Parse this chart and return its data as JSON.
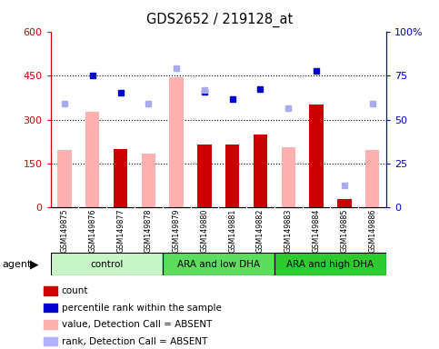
{
  "title": "GDS2652 / 219128_at",
  "samples": [
    "GSM149875",
    "GSM149876",
    "GSM149877",
    "GSM149878",
    "GSM149879",
    "GSM149880",
    "GSM149881",
    "GSM149882",
    "GSM149883",
    "GSM149884",
    "GSM149885",
    "GSM149886"
  ],
  "group_colors": [
    "#c8f5c8",
    "#5ddd5d",
    "#2ecb2e"
  ],
  "group_labels": [
    "control",
    "ARA and low DHA",
    "ARA and high DHA"
  ],
  "group_ranges": [
    [
      0,
      3
    ],
    [
      4,
      7
    ],
    [
      8,
      11
    ]
  ],
  "dark_red_bars": [
    null,
    null,
    200,
    null,
    null,
    215,
    215,
    250,
    null,
    350,
    30,
    null
  ],
  "pink_bars": [
    195,
    325,
    null,
    185,
    445,
    null,
    null,
    null,
    205,
    null,
    30,
    195
  ],
  "dark_blue_squares": [
    null,
    450,
    390,
    null,
    null,
    395,
    370,
    405,
    null,
    465,
    null,
    null
  ],
  "light_blue_squares": [
    355,
    null,
    null,
    355,
    475,
    400,
    null,
    null,
    340,
    null,
    75,
    355
  ],
  "ylim": [
    0,
    600
  ],
  "yticks_left": [
    0,
    150,
    300,
    450,
    600
  ],
  "ytick_labels_left": [
    "0",
    "150",
    "300",
    "450",
    "600"
  ],
  "yticks_right_pos": [
    0,
    150,
    300,
    450,
    600
  ],
  "ytick_labels_right": [
    "0",
    "25",
    "50",
    "75",
    "100%"
  ],
  "hlines": [
    150,
    300,
    450
  ],
  "left_color": "#cc0000",
  "right_color": "#0000bb",
  "legend_colors": [
    "#cc0000",
    "#0000cc",
    "#ffb0b0",
    "#b0b0ff"
  ],
  "legend_labels": [
    "count",
    "percentile rank within the sample",
    "value, Detection Call = ABSENT",
    "rank, Detection Call = ABSENT"
  ]
}
